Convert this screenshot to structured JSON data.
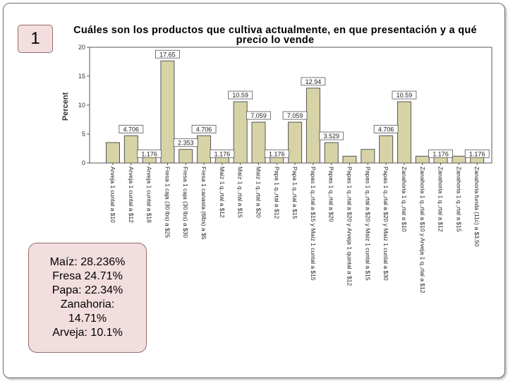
{
  "slide": {
    "number": "1"
  },
  "summary": {
    "lines": [
      "Maíz: 28.236%",
      "Fresa 24.71%",
      "Papa: 22.34%",
      "Zanahoria:",
      "14.71%",
      "Arveja: 10.1%"
    ]
  },
  "colors": {
    "bar_fill": "#d8d3a6",
    "bar_stroke": "#555555",
    "label_box": "#ffffff",
    "accent_box": "#f2dede"
  },
  "chart_data": {
    "type": "bar",
    "title": "Cuáles son los productos que cultiva actualmente, en que presentación y a qué precio lo vende",
    "title_lines": [
      "Cuáles son los productos que cultiva actualmente, en que presentación y a qué",
      "precio lo vende"
    ],
    "ylabel": "Percent",
    "xlabel": "",
    "ylim": [
      0,
      20
    ],
    "yticks": [
      0,
      5,
      10,
      15,
      20
    ],
    "grid": false,
    "categories": [
      "Arveja 1 cuntal a $10",
      "Arveja 1 cuntal a $12",
      "Arveja 1 cuntal a $18",
      "Fresa 1 caja (30 lbs) a $25",
      "Fresa 1 caja (30 lbs) a $30",
      "Fresa 1 canasta (6lbs) a $5",
      "Maíz 1 q.,rtal a $12",
      "Maíz 1 q.,rtal a $15",
      "Maíz 1 q.,rtal a $20",
      "Papa 1 q.,rtal a $12",
      "Papa 1 q.,rtal a $15",
      "Papas 1 q.,rtal a $15 y Maíz 1 cuntal a $15",
      "Papas 1 q.,rtal a $20",
      "Papas 1 q.,rtal a $20 y Arveja 1 quintal a $12",
      "Papas 1 q.,rtal a $20 y Maíz 1 cuntal a $15",
      "Papas 1 q.,rtal a $20 y Maíz 1 cuntal a $30",
      "Zanahoria 1 q.,rtal a $10",
      "Zanahoria 1 q.,rtal a $10 y Arveja 1 q.,rtal a $12",
      "Zanahoria 1 q.,rtal a $12",
      "Zanahoria 1 q.,rtal a $15",
      "Zanahoria funda (11c) a $3.50"
    ],
    "values": [
      3.529,
      4.706,
      1.176,
      17.65,
      2.353,
      4.706,
      1.176,
      10.59,
      7.059,
      1.176,
      7.059,
      12.94,
      3.529,
      1.176,
      2.353,
      4.706,
      10.59,
      1.176,
      1.176,
      1.176,
      1.176
    ],
    "data_labels": [
      "",
      "4.706",
      "1.176",
      "17.65",
      "2.353",
      "4.706",
      "1.176",
      "10.59",
      "7.059",
      "1.176",
      "7.059",
      "12.94",
      "3.529",
      "",
      "",
      "4.706",
      "10.59",
      "",
      "1.176",
      "",
      "1.176"
    ]
  }
}
